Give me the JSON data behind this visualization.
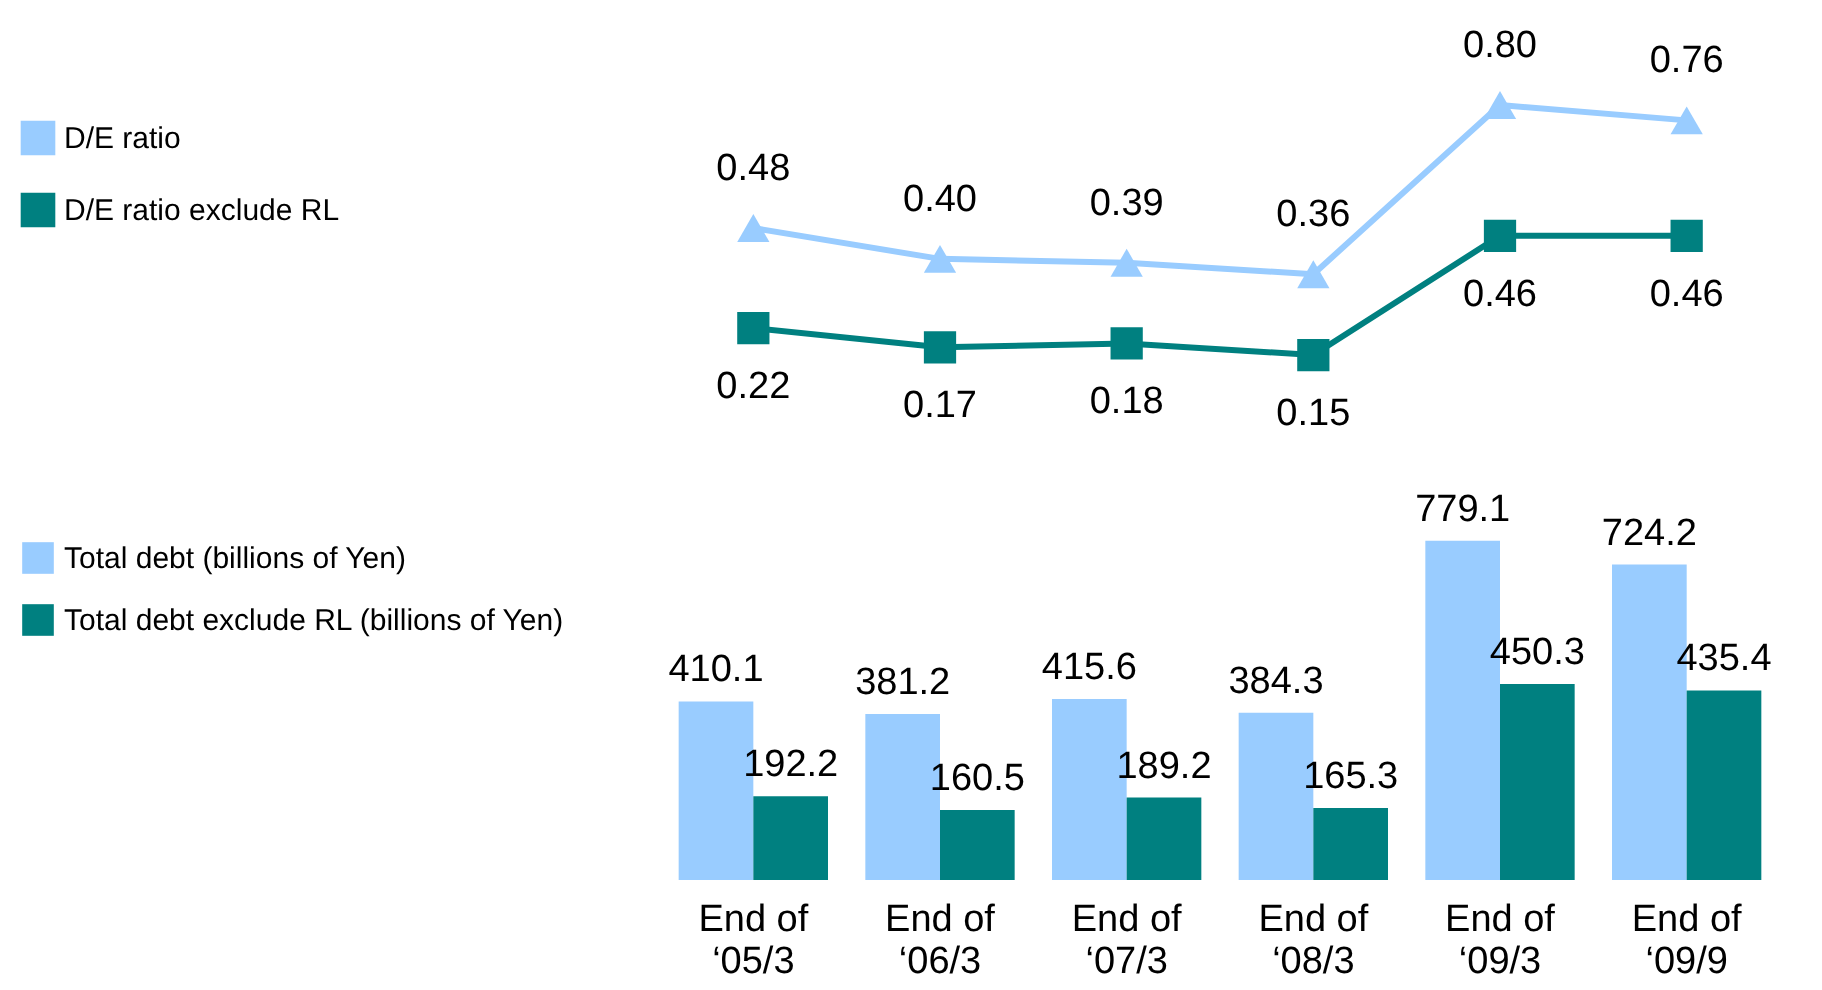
{
  "chart_data": [
    {
      "type": "line",
      "categories": [
        null,
        null,
        null,
        null,
        null,
        null
      ],
      "legend": "left",
      "series": [
        {
          "name": "D/E ratio",
          "marker": "triangle",
          "color": "#99ccff",
          "values": [
            0.48,
            0.4,
            0.39,
            0.36,
            0.8,
            0.76
          ],
          "value_labels": [
            "0.48",
            "0.40",
            "0.39",
            "0.36",
            "0.80",
            "0.76"
          ]
        },
        {
          "name": "D/E ratio exclude RL",
          "marker": "square",
          "color": "#008080",
          "values": [
            0.22,
            0.17,
            0.18,
            0.15,
            0.46,
            0.46
          ],
          "value_labels": [
            "0.22",
            "0.17",
            "0.18",
            "0.15",
            "0.46",
            "0.46"
          ]
        }
      ]
    },
    {
      "type": "bar",
      "categories": [
        "End of\n‘05/3",
        "End of\n‘06/3",
        "End of\n‘07/3",
        "End of\n‘08/3",
        "End of\n‘09/3",
        "End of\n‘09/9"
      ],
      "legend": "left",
      "data_labels": true,
      "series": [
        {
          "name": "Total debt (billions of Yen)",
          "color": "#99ccff",
          "values": [
            410.1,
            381.2,
            415.6,
            384.3,
            779.1,
            724.2
          ]
        },
        {
          "name": "Total debt exclude RL (billions of Yen)",
          "color": "#008080",
          "values": [
            192.2,
            160.5,
            189.2,
            165.3,
            450.3,
            435.4
          ]
        }
      ]
    }
  ]
}
